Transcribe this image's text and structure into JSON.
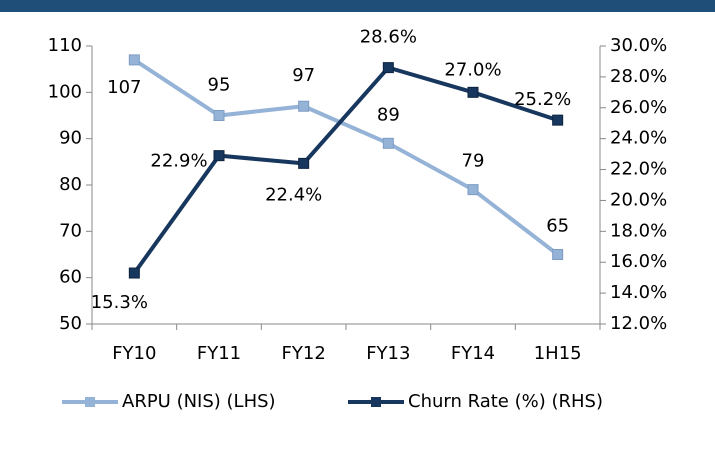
{
  "chart_data": {
    "type": "line",
    "categories": [
      "FY10",
      "FY11",
      "FY12",
      "FY13",
      "FY14",
      "1H15"
    ],
    "series": [
      {
        "name": "ARPU (NIS) (LHS)",
        "color": "#95b3d7",
        "values": [
          107,
          95,
          97,
          89,
          79,
          65
        ]
      },
      {
        "name": "Churn Rate (%) (RHS)",
        "color": "#17375e",
        "axis": "y2",
        "values": [
          15.3,
          22.9,
          22.4,
          28.6,
          27.0,
          25.2
        ],
        "value_labels": [
          "15.3%",
          "22.9%",
          "22.4%",
          "28.6%",
          "27.0%",
          "25.2%"
        ]
      }
    ],
    "ylim": [
      50,
      110
    ],
    "yticks": [
      50,
      60,
      70,
      80,
      90,
      100,
      110
    ],
    "y2lim": [
      12,
      30
    ],
    "y2ticks": [
      {
        "value": 12,
        "label": "12.0%"
      },
      {
        "value": 14,
        "label": "14.0%"
      },
      {
        "value": 16,
        "label": "16.0%"
      },
      {
        "value": 18,
        "label": "18.0%"
      },
      {
        "value": 20,
        "label": "20.0%"
      },
      {
        "value": 22,
        "label": "22.0%"
      },
      {
        "value": 24,
        "label": "24.0%"
      },
      {
        "value": 26,
        "label": "26.0%"
      },
      {
        "value": 28,
        "label": "28.0%"
      },
      {
        "value": 30,
        "label": "30.0%"
      }
    ],
    "legend": "bottom"
  }
}
